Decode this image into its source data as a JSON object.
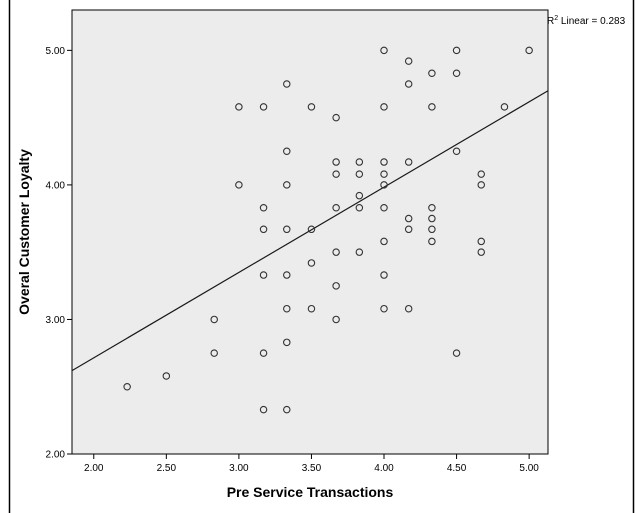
{
  "chart_data": {
    "type": "scatter",
    "xlabel": "Pre Service Transactions",
    "ylabel": "Overal Customer Loyalty",
    "xlim": [
      1.85,
      5.13
    ],
    "ylim": [
      2.0,
      5.3
    ],
    "x_ticks": [
      "2.00",
      "2.50",
      "3.00",
      "3.50",
      "4.00",
      "4.50",
      "5.00"
    ],
    "y_ticks": [
      "2.00",
      "3.00",
      "4.00",
      "5.00"
    ],
    "fit_line": {
      "type": "linear",
      "label_prefix": "R",
      "label_sup": "2",
      "label_suffix": " Linear = 0.283",
      "points": [
        [
          1.85,
          2.62
        ],
        [
          5.13,
          4.7
        ]
      ]
    },
    "colors": {
      "plot_bg": "#ececec",
      "marker_stroke": "#333333",
      "line": "#1a1a1a",
      "axis": "#000000"
    },
    "points": [
      [
        2.23,
        2.5
      ],
      [
        2.5,
        2.58
      ],
      [
        2.83,
        3.0
      ],
      [
        2.83,
        2.75
      ],
      [
        3.0,
        4.58
      ],
      [
        3.0,
        4.0
      ],
      [
        3.17,
        4.58
      ],
      [
        3.17,
        3.83
      ],
      [
        3.17,
        3.67
      ],
      [
        3.17,
        3.33
      ],
      [
        3.17,
        2.75
      ],
      [
        3.17,
        2.33
      ],
      [
        3.33,
        4.75
      ],
      [
        3.33,
        4.25
      ],
      [
        3.33,
        4.0
      ],
      [
        3.33,
        3.67
      ],
      [
        3.33,
        3.33
      ],
      [
        3.33,
        3.08
      ],
      [
        3.33,
        2.83
      ],
      [
        3.33,
        2.33
      ],
      [
        3.5,
        4.58
      ],
      [
        3.5,
        3.67
      ],
      [
        3.5,
        3.42
      ],
      [
        3.5,
        3.08
      ],
      [
        3.67,
        4.5
      ],
      [
        3.67,
        4.17
      ],
      [
        3.67,
        4.08
      ],
      [
        3.67,
        3.83
      ],
      [
        3.67,
        3.5
      ],
      [
        3.67,
        3.25
      ],
      [
        3.67,
        3.0
      ],
      [
        3.83,
        4.17
      ],
      [
        3.83,
        4.08
      ],
      [
        3.83,
        3.92
      ],
      [
        3.83,
        3.83
      ],
      [
        3.83,
        3.5
      ],
      [
        4.0,
        5.0
      ],
      [
        4.0,
        4.58
      ],
      [
        4.0,
        4.17
      ],
      [
        4.0,
        4.08
      ],
      [
        4.0,
        4.0
      ],
      [
        4.0,
        3.83
      ],
      [
        4.0,
        3.58
      ],
      [
        4.0,
        3.33
      ],
      [
        4.0,
        3.08
      ],
      [
        4.17,
        4.92
      ],
      [
        4.17,
        4.75
      ],
      [
        4.17,
        4.17
      ],
      [
        4.17,
        3.75
      ],
      [
        4.17,
        3.67
      ],
      [
        4.17,
        3.08
      ],
      [
        4.33,
        4.83
      ],
      [
        4.33,
        4.58
      ],
      [
        4.33,
        3.83
      ],
      [
        4.33,
        3.75
      ],
      [
        4.33,
        3.67
      ],
      [
        4.33,
        3.58
      ],
      [
        4.5,
        5.0
      ],
      [
        4.5,
        4.83
      ],
      [
        4.5,
        4.25
      ],
      [
        4.5,
        2.75
      ],
      [
        4.67,
        4.08
      ],
      [
        4.67,
        4.0
      ],
      [
        4.67,
        3.58
      ],
      [
        4.67,
        3.5
      ],
      [
        4.83,
        4.58
      ],
      [
        5.0,
        5.0
      ]
    ]
  }
}
